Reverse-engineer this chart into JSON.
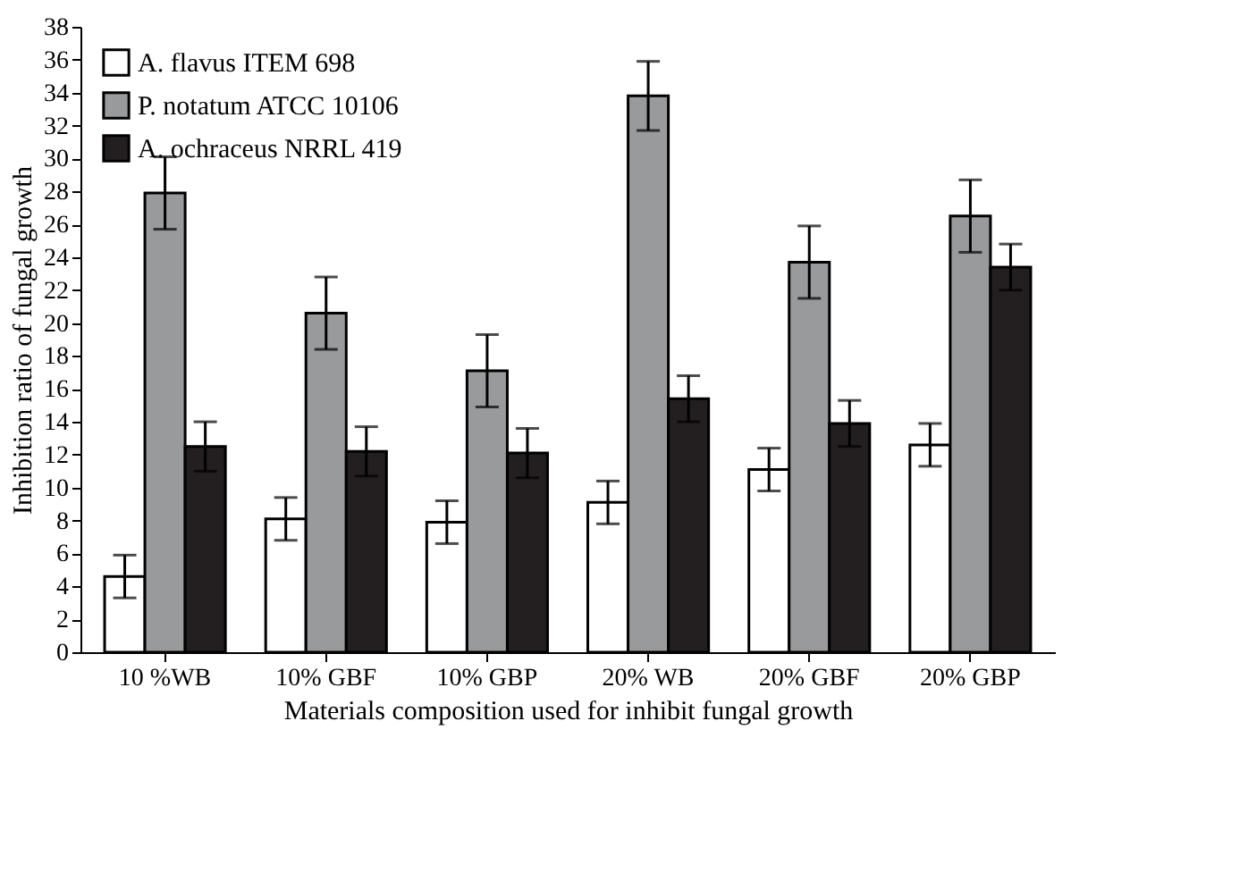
{
  "chart_data": {
    "type": "bar",
    "xlabel": "Materials composition used for inhibit fungal growth",
    "ylabel": "Inhibition ratio of fungal growth",
    "categories": [
      "10 %WB",
      "10% GBF",
      "10% GBP",
      "20% WB",
      "20% GBF",
      "20% GBP"
    ],
    "series": [
      {
        "name": "A. flavus ITEM 698",
        "color": "#ffffff",
        "values": [
          4.6,
          8.1,
          7.9,
          9.1,
          11.1,
          12.6
        ],
        "errors": [
          1.3,
          1.3,
          1.3,
          1.3,
          1.3,
          1.3
        ]
      },
      {
        "name": "P. notatum ATCC 10106",
        "color": "#999a9c",
        "values": [
          27.9,
          20.6,
          17.1,
          33.8,
          23.7,
          26.5
        ],
        "errors": [
          2.2,
          2.2,
          2.2,
          2.1,
          2.2,
          2.2
        ]
      },
      {
        "name": "A. ochraceus NRRL 419",
        "color": "#231f20",
        "values": [
          12.5,
          12.2,
          12.1,
          15.4,
          13.9,
          23.4
        ],
        "errors": [
          1.5,
          1.5,
          1.5,
          1.4,
          1.4,
          1.4
        ]
      }
    ],
    "ylim": [
      0,
      38
    ],
    "yticks": [
      0,
      2,
      4,
      6,
      8,
      10,
      12,
      14,
      16,
      18,
      20,
      22,
      24,
      26,
      28,
      30,
      32,
      34,
      36,
      38
    ],
    "grid": false,
    "legend": "top left"
  }
}
